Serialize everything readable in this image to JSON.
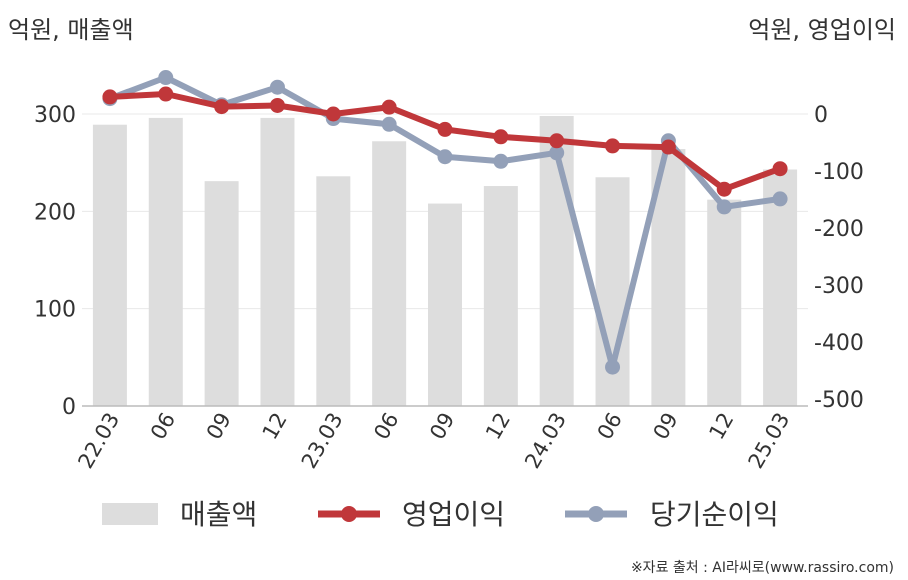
{
  "chart_data": {
    "type": "bar+line",
    "left_axis_unit": "억원, 매출액",
    "right_axis_unit": "억원, 영업이익",
    "categories": [
      "22.03",
      "06",
      "09",
      "12",
      "23.03",
      "06",
      "09",
      "12",
      "24.03",
      "06",
      "09",
      "12",
      "25.03"
    ],
    "left_axis": {
      "ylim": [
        0,
        350
      ],
      "ticks": [
        0,
        100,
        200,
        300
      ]
    },
    "right_axis": {
      "ylim": [
        -500,
        60
      ],
      "ticks": [
        0,
        -100,
        -200,
        -300,
        -400,
        -500
      ],
      "tick_labels": [
        "0",
        "-100",
        "-200",
        "-300",
        "-400",
        "-500"
      ]
    },
    "series": [
      {
        "name": "매출액",
        "type": "bar",
        "axis": "left",
        "color": "#dddddd",
        "values": [
          289,
          296,
          231,
          296,
          236,
          272,
          208,
          226,
          298,
          235,
          264,
          212,
          243
        ]
      },
      {
        "name": "영업이익",
        "type": "line",
        "axis": "right",
        "color": "#c0373a",
        "values": [
          30,
          35,
          13,
          15,
          0,
          12,
          -27,
          -40,
          -47,
          -56,
          -58,
          -132,
          -96
        ]
      },
      {
        "name": "당기순이익",
        "type": "line",
        "axis": "right",
        "color": "#93a0b8",
        "values": [
          27,
          64,
          16,
          47,
          -8,
          -18,
          -75,
          -83,
          -68,
          -444,
          -47,
          -163,
          -149
        ]
      }
    ],
    "legend": {
      "position": "bottom"
    },
    "grid": true
  },
  "source_text": "※자료 출처 : AI라씨로(www.rassiro.com)"
}
